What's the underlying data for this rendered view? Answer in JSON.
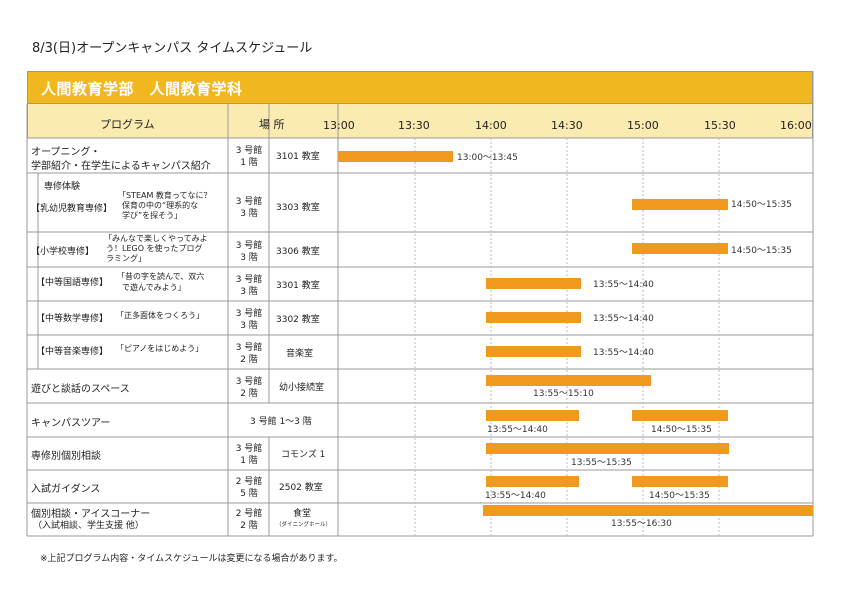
{
  "title": "8/3(日)オープンキャンパス タイムスケジュール",
  "department": "人間教育学部　人間教育学科",
  "headers": {
    "program": "プログラム",
    "place": "場 所"
  },
  "times": [
    "13:00",
    "13:30",
    "14:00",
    "14:30",
    "15:00",
    "15:30",
    "16:00"
  ],
  "rows": {
    "opening": {
      "name1": "オープニング・",
      "name2": "学部紹介・在学生によるキャンパス紹介",
      "bldg1": "3 号館",
      "bldg2": "1 階",
      "room": "3101 教室",
      "time": "13:00〜13:45"
    },
    "section": "専修体験",
    "early": {
      "tag": "【乳幼児教育専修】",
      "desc1": "「STEAM 教育ってなに？",
      "desc2": "保育の中の“理系的な",
      "desc3": "学び”を探そう」",
      "bldg1": "3 号館",
      "bldg2": "3 階",
      "room": "3303 教室",
      "time": "14:50〜15:35"
    },
    "elem": {
      "tag": "【小学校専修】",
      "desc1": "「みんなで楽しくやってみよ",
      "desc2": "う！LEGO を使ったプログ",
      "desc3": "ラミング」",
      "bldg1": "3 号館",
      "bldg2": "3 階",
      "room": "3306 教室",
      "time": "14:50〜15:35"
    },
    "jpn": {
      "tag": "【中等国語専修】",
      "desc1": "「昔の字を読んで、双六",
      "desc2": "で遊んでみよう」",
      "bldg1": "3 号館",
      "bldg2": "3 階",
      "room": "3301 教室",
      "time": "13:55〜14:40"
    },
    "math": {
      "tag": "【中等数学専修】",
      "desc1": "「正多面体をつくろう」",
      "bldg1": "3 号館",
      "bldg2": "3 階",
      "room": "3302 教室",
      "time": "13:55〜14:40"
    },
    "music": {
      "tag": "【中等音楽専修】",
      "desc1": "「ピアノをはじめよう」",
      "bldg1": "3 号館",
      "bldg2": "2 階",
      "room": "音楽室",
      "time": "13:55〜14:40"
    },
    "space": {
      "name": "遊びと談話のスペース",
      "bldg1": "3 号館",
      "bldg2": "2 階",
      "room": "幼小接続室",
      "time": "13:55〜15:10"
    },
    "tour": {
      "name": "キャンパスツアー",
      "place": "3 号館 1〜3 階",
      "time1": "13:55〜14:40",
      "time2": "14:50〜15:35"
    },
    "consult": {
      "name": "専修別個別相談",
      "bldg1": "3 号館",
      "bldg2": "1 階",
      "room": "コモンズ 1",
      "time": "13:55〜15:35"
    },
    "exam": {
      "name": "入試ガイダンス",
      "bldg1": "2 号館",
      "bldg2": "5 階",
      "room": "2502 教室",
      "time1": "13:55〜14:40",
      "time2": "14:50〜15:35"
    },
    "ice": {
      "name1": "個別相談・アイスコーナー",
      "name2": "（入試相談、学生支援 他）",
      "bldg1": "2 号館",
      "bldg2": "2 階",
      "room": "食堂",
      "room_sub": "（ダイニングホール）",
      "time": "13:55〜16:30"
    }
  },
  "note": "※上記プログラム内容・タイムスケジュールは変更になる場合があります。",
  "colors": {
    "band": "#f0b81e",
    "header": "#fbebb0",
    "bar": "#ef9a1f"
  }
}
